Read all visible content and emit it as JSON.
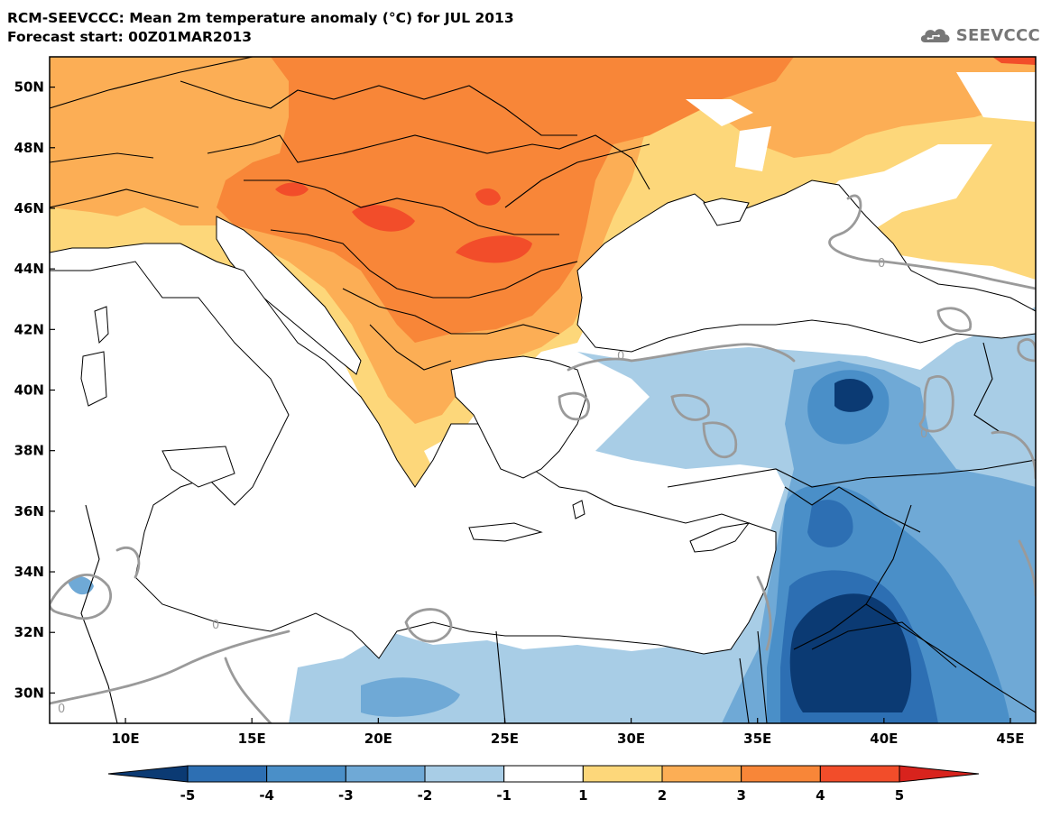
{
  "title": "RCM-SEEVCCC: Mean 2m temperature anomaly (°C) for JUL 2013",
  "subtitle": "Forecast start: 00Z01MAR2013",
  "logo": {
    "text": "SEEVCCC",
    "icon": "cloud-icon"
  },
  "map": {
    "lon_range": [
      7,
      46
    ],
    "lat_range": [
      29,
      51
    ],
    "lat_ticks": [
      {
        "value": 50,
        "label": "50N"
      },
      {
        "value": 48,
        "label": "48N"
      },
      {
        "value": 46,
        "label": "46N"
      },
      {
        "value": 44,
        "label": "44N"
      },
      {
        "value": 42,
        "label": "42N"
      },
      {
        "value": 40,
        "label": "40N"
      },
      {
        "value": 38,
        "label": "38N"
      },
      {
        "value": 36,
        "label": "36N"
      },
      {
        "value": 34,
        "label": "34N"
      },
      {
        "value": 32,
        "label": "32N"
      },
      {
        "value": 30,
        "label": "30N"
      }
    ],
    "lon_ticks": [
      {
        "value": 10,
        "label": "10E"
      },
      {
        "value": 15,
        "label": "15E"
      },
      {
        "value": 20,
        "label": "20E"
      },
      {
        "value": 25,
        "label": "25E"
      },
      {
        "value": 30,
        "label": "30E"
      },
      {
        "value": 35,
        "label": "35E"
      },
      {
        "value": 40,
        "label": "40E"
      },
      {
        "value": 45,
        "label": "45E"
      }
    ],
    "contour_label": "0"
  },
  "colorbar": {
    "levels": [
      "-5",
      "-4",
      "-3",
      "-2",
      "-1",
      "1",
      "2",
      "3",
      "4",
      "5"
    ],
    "colors": [
      "#0b3a73",
      "#2d6fb3",
      "#4a8fc8",
      "#6fa9d6",
      "#a8cde6",
      "#ffffff",
      "#fdd77a",
      "#fcae55",
      "#f88638",
      "#f24d2a",
      "#d8231d"
    ]
  },
  "palette": {
    "pos1": "#fdd77a",
    "pos2": "#fcae55",
    "pos3": "#f88638",
    "pos4": "#f24d2a",
    "neg1": "#a8cde6",
    "neg2": "#6fa9d6",
    "neg3": "#4a8fc8",
    "neg4": "#2d6fb3",
    "neg5": "#0b3a73",
    "zero_contour": "#9a9a9a",
    "border": "#000000"
  }
}
